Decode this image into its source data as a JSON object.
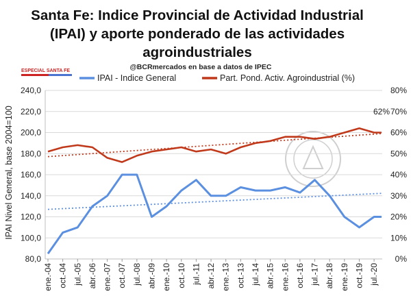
{
  "chart_data": {
    "type": "line",
    "title_lines": [
      "Santa Fe: Indice Provincial de Actividad Industrial",
      "(IPAI) y aporte ponderado de las actividades",
      "agroindustriales"
    ],
    "source": "@BCRmercados en base a datos de IPEC",
    "badge": "ESPECIAL SANTA FE",
    "ylabel": "IPAI Nivel General, base 2004=100",
    "y_left_ticks": [
      "80,0",
      "100,0",
      "120,0",
      "140,0",
      "160,0",
      "180,0",
      "200,0",
      "220,0",
      "240,0"
    ],
    "y_right_ticks": [
      "0%",
      "10%",
      "20%",
      "30%",
      "40%",
      "50%",
      "60%",
      "70%",
      "80%"
    ],
    "x_ticks": [
      "ene.-04",
      "oct.-04",
      "jul.-05",
      "abr.-06",
      "ene.-07",
      "oct.-07",
      "jul.-08",
      "abr.-09",
      "ene.-10",
      "oct.-10",
      "jul.-11",
      "abr.-12",
      "ene.-13",
      "oct.-13",
      "jul.-14",
      "abr.-15",
      "ene.-16",
      "oct.-16",
      "jul.-17",
      "abr.-18",
      "ene.-19",
      "oct.-19",
      "jul.-20"
    ],
    "y_left_range": [
      80,
      240
    ],
    "y_right_range": [
      0,
      80
    ],
    "series": [
      {
        "name": "IPAI - Indice General",
        "axis": "left",
        "color": "#5b8fe0",
        "anchors": [
          [
            "ene.-04",
            85
          ],
          [
            "oct.-04",
            105
          ],
          [
            "jul.-05",
            110
          ],
          [
            "abr.-06",
            130
          ],
          [
            "ene.-07",
            140
          ],
          [
            "oct.-07",
            160
          ],
          [
            "jul.-08",
            160
          ],
          [
            "abr.-09",
            120
          ],
          [
            "ene.-10",
            130
          ],
          [
            "oct.-10",
            145
          ],
          [
            "jul.-11",
            155
          ],
          [
            "abr.-12",
            140
          ],
          [
            "ene.-13",
            140
          ],
          [
            "oct.-13",
            148
          ],
          [
            "jul.-14",
            145
          ],
          [
            "abr.-15",
            145
          ],
          [
            "ene.-16",
            148
          ],
          [
            "oct.-16",
            143
          ],
          [
            "jul.-17",
            155
          ],
          [
            "abr.-18",
            140
          ],
          [
            "ene.-19",
            120
          ],
          [
            "oct.-19",
            110
          ],
          [
            "jul.-20",
            120
          ]
        ]
      },
      {
        "name": "Part. Pond. Activ. Agroindustrial (%)",
        "axis": "right",
        "color": "#c0391b",
        "anchors": [
          [
            "ene.-04",
            51
          ],
          [
            "oct.-04",
            53
          ],
          [
            "jul.-05",
            54
          ],
          [
            "abr.-06",
            53
          ],
          [
            "ene.-07",
            48
          ],
          [
            "oct.-07",
            46
          ],
          [
            "jul.-08",
            49
          ],
          [
            "abr.-09",
            51
          ],
          [
            "ene.-10",
            52
          ],
          [
            "oct.-10",
            53
          ],
          [
            "jul.-11",
            51
          ],
          [
            "abr.-12",
            52
          ],
          [
            "ene.-13",
            50
          ],
          [
            "oct.-13",
            53
          ],
          [
            "jul.-14",
            55
          ],
          [
            "abr.-15",
            56
          ],
          [
            "ene.-16",
            58
          ],
          [
            "oct.-16",
            58
          ],
          [
            "jul.-17",
            57
          ],
          [
            "abr.-18",
            58
          ],
          [
            "ene.-19",
            60
          ],
          [
            "oct.-19",
            62
          ],
          [
            "jul.-20",
            60
          ]
        ]
      }
    ],
    "annotation": "62%",
    "legend_position": "top",
    "grid": true
  }
}
